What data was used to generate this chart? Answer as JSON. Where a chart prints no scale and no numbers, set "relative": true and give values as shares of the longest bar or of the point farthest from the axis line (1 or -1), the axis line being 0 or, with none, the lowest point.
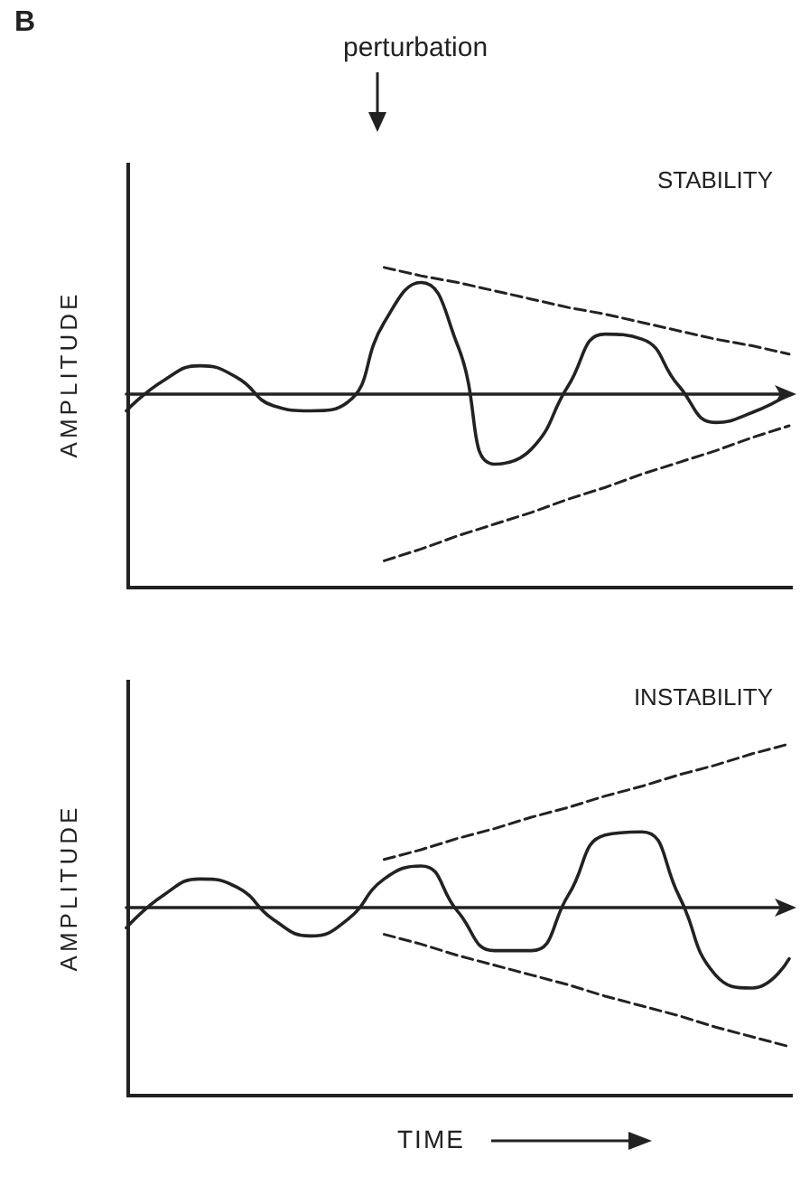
{
  "chart_data": [
    {
      "type": "line",
      "title": "STABILITY",
      "ylabel": "AMPLITUDE",
      "annotations": [
        "B",
        "perturbation"
      ],
      "relative": true,
      "grid": false,
      "marker": "none",
      "categories": [
        null,
        null,
        null,
        null,
        null,
        null,
        null,
        null,
        null,
        null,
        null,
        null,
        null,
        null,
        null,
        null,
        null,
        null,
        null
      ],
      "series": [
        {
          "color": "#222222",
          "line_style": "solid",
          "values": [
            -0.1,
            0.08,
            0.17,
            0.1,
            -0.07,
            -0.1,
            -0.05,
            0.43,
            0.67,
            0.29,
            -0.42,
            -0.33,
            0.05,
            0.36,
            0.33,
            0.05,
            -0.17,
            -0.11,
            0
          ]
        },
        {
          "color": "#222222",
          "line_style": "dashed",
          "values": [
            null,
            null,
            null,
            null,
            null,
            null,
            null,
            0.76,
            0.71,
            0.67,
            0.62,
            0.57,
            0.52,
            0.48,
            0.43,
            0.38,
            0.33,
            0.29,
            0.24
          ]
        },
        {
          "color": "#222222",
          "line_style": "dashed",
          "values": [
            null,
            null,
            null,
            null,
            null,
            null,
            null,
            -1,
            -0.93,
            -0.85,
            -0.78,
            -0.71,
            -0.63,
            -0.56,
            -0.48,
            -0.41,
            -0.34,
            -0.26,
            -0.19
          ]
        }
      ]
    },
    {
      "type": "line",
      "title": "INSTABILITY",
      "ylabel": "AMPLITUDE",
      "xlabel": "TIME",
      "relative": true,
      "grid": false,
      "marker": "none",
      "categories": [
        null,
        null,
        null,
        null,
        null,
        null,
        null,
        null,
        null,
        null,
        null,
        null,
        null,
        null,
        null,
        null,
        null,
        null,
        null
      ],
      "series": [
        {
          "color": "#222222",
          "line_style": "solid",
          "values": [
            -0.13,
            0.07,
            0.17,
            0.12,
            -0.08,
            -0.18,
            -0.08,
            0.17,
            0.25,
            -0.03,
            -0.27,
            -0.27,
            0.07,
            0.44,
            0.46,
            0.07,
            -0.42,
            -0.5,
            -0.32
          ]
        },
        {
          "color": "#222222",
          "line_style": "dashed",
          "values": [
            null,
            null,
            null,
            null,
            null,
            null,
            null,
            0.29,
            0.35,
            0.42,
            0.48,
            0.55,
            0.61,
            0.68,
            0.74,
            0.81,
            0.87,
            0.94,
            1
          ]
        },
        {
          "color": "#222222",
          "line_style": "dashed",
          "values": [
            null,
            null,
            null,
            null,
            null,
            null,
            null,
            -0.17,
            -0.23,
            -0.3,
            -0.36,
            -0.42,
            -0.48,
            -0.55,
            -0.61,
            -0.67,
            -0.74,
            -0.8,
            -0.86
          ]
        }
      ]
    }
  ]
}
